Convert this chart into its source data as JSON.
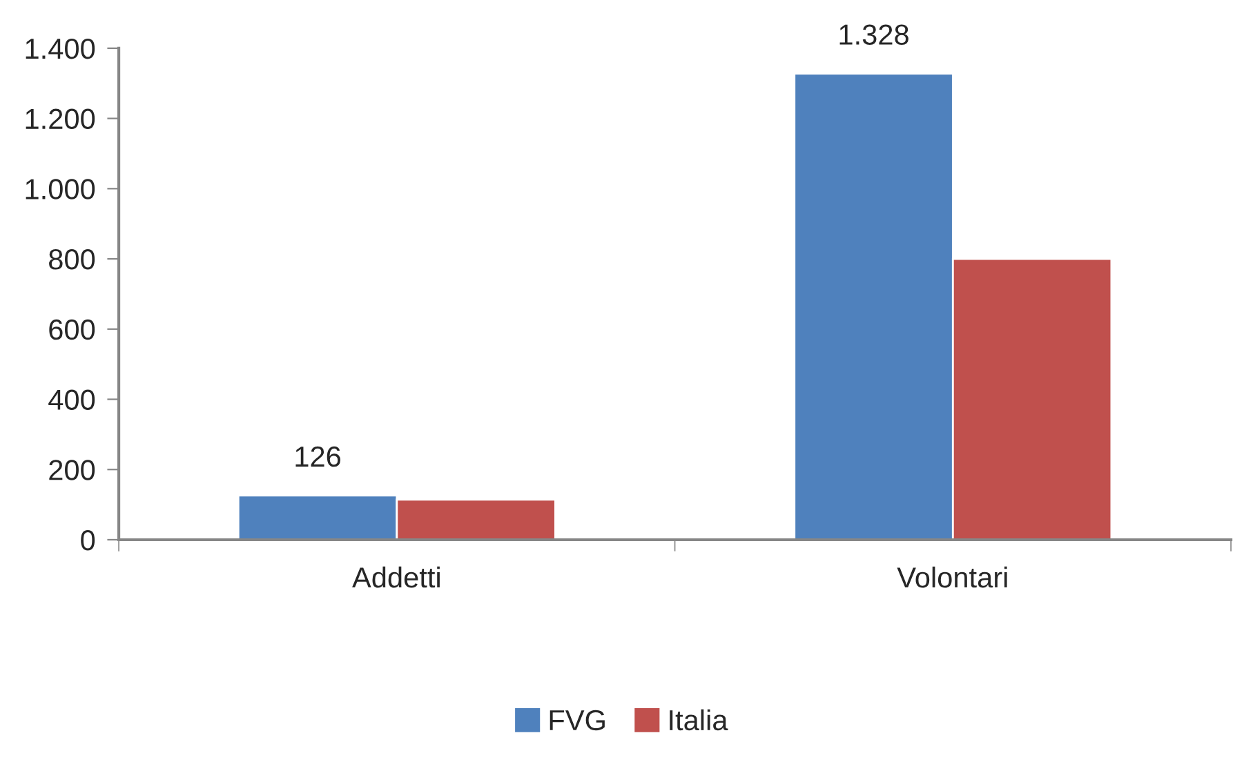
{
  "chart_data": {
    "type": "bar",
    "categories": [
      "Addetti",
      "Volontari"
    ],
    "series": [
      {
        "name": "FVG",
        "color": "#4f81bd",
        "values": [
          126,
          1328
        ],
        "value_labels": [
          "126",
          "1.328"
        ]
      },
      {
        "name": "Italia",
        "color": "#c0504d",
        "values": [
          114,
          800
        ]
      }
    ],
    "ylim": [
      0,
      1400
    ],
    "yticks": [
      0,
      200,
      400,
      600,
      800,
      {
        "value": 1000,
        "label": "1.000"
      },
      {
        "value": 1200,
        "label": "1.200"
      },
      {
        "value": 1400,
        "label": "1.400"
      }
    ],
    "grid": false,
    "legend": "bottom"
  }
}
